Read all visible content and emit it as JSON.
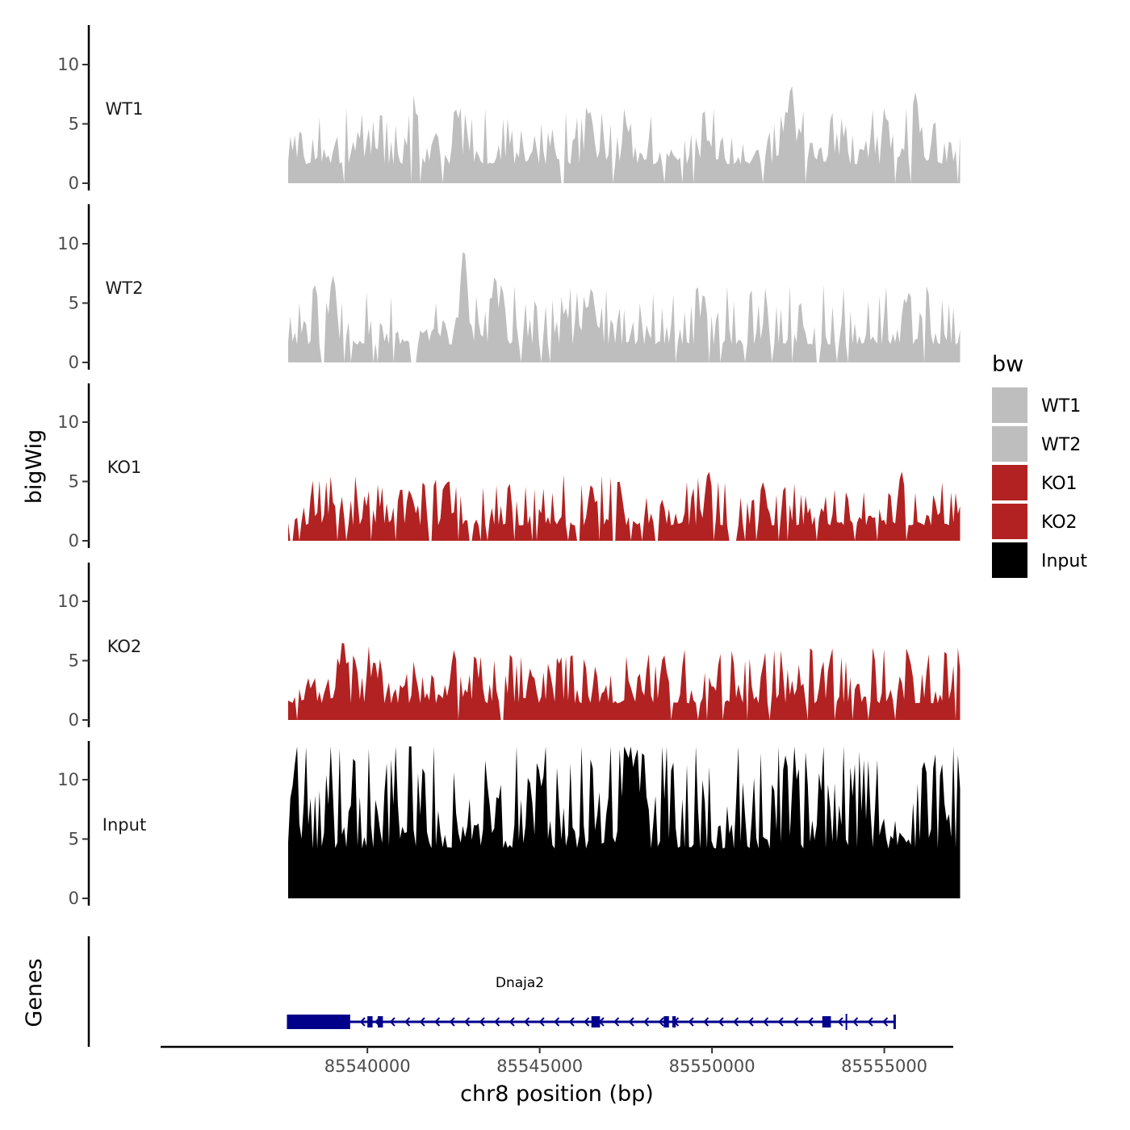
{
  "chart_data": {
    "type": "area",
    "title": "",
    "xlabel": "chr8 position (bp)",
    "ylabel": "bigWig",
    "genes_label": "Genes",
    "xlim": [
      85534000,
      85557000
    ],
    "ylim": [
      0,
      13
    ],
    "xticks": [
      85540000,
      85545000,
      85550000,
      85555000
    ],
    "xtick_labels": [
      "85540000",
      "85545000",
      "85550000",
      "85555000"
    ],
    "yticks": [
      0,
      5,
      10
    ],
    "ytick_labels": [
      "0",
      "5",
      "10"
    ],
    "region": [
      85537700,
      85557200
    ],
    "legend": {
      "title": "bw",
      "position": "right",
      "entries": [
        {
          "label": "WT1",
          "color": "#bebebe"
        },
        {
          "label": "WT2",
          "color": "#bebebe"
        },
        {
          "label": "KO1",
          "color": "#b22222"
        },
        {
          "label": "KO2",
          "color": "#b22222"
        },
        {
          "label": "Input",
          "color": "#000000"
        }
      ]
    },
    "series": [
      {
        "name": "WT1",
        "color": "#bebebe",
        "seed": 11,
        "baseline": 1.6,
        "noise": 2.2,
        "gap_prob": 0.05,
        "peaks": [
          [
            85541300,
            7.6
          ],
          [
            85552300,
            8.0
          ],
          [
            85555900,
            7.5
          ],
          [
            85546500,
            5.0
          ],
          [
            85547500,
            5.0
          ]
        ]
      },
      {
        "name": "WT2",
        "color": "#bebebe",
        "seed": 23,
        "baseline": 1.5,
        "noise": 2.3,
        "gap_prob": 0.07,
        "peaks": [
          [
            85542800,
            9.5
          ],
          [
            85539000,
            7.3
          ],
          [
            85543700,
            7.2
          ],
          [
            85546500,
            6.2
          ],
          [
            85556200,
            5.5
          ]
        ]
      },
      {
        "name": "KO1",
        "color": "#b22222",
        "seed": 37,
        "baseline": 1.3,
        "noise": 2.0,
        "gap_prob": 0.12,
        "peaks": [
          [
            85549900,
            5.7
          ],
          [
            85555500,
            5.5
          ],
          [
            85547300,
            5.0
          ],
          [
            85542300,
            4.8
          ],
          [
            85546500,
            4.5
          ]
        ]
      },
      {
        "name": "KO2",
        "color": "#b22222",
        "seed": 53,
        "baseline": 1.4,
        "noise": 2.2,
        "gap_prob": 0.07,
        "peaks": [
          [
            85539300,
            6.5
          ],
          [
            85557100,
            6.3
          ],
          [
            85542600,
            5.2
          ],
          [
            85548600,
            5.2
          ],
          [
            85540200,
            5.0
          ]
        ]
      },
      {
        "name": "Input",
        "color": "#000000",
        "seed": 71,
        "baseline": 4.2,
        "noise": 4.4,
        "gap_prob": 0.0,
        "peaks": [
          [
            85548000,
            12.5
          ],
          [
            85537900,
            11.2
          ],
          [
            85552400,
            11.0
          ],
          [
            85545100,
            10.3
          ],
          [
            85544700,
            9.5
          ]
        ]
      }
    ],
    "gene": {
      "name": "Dnaja2",
      "color": "#00008b",
      "strand": "-",
      "start": 85537700,
      "end": 85555300,
      "exons": [
        [
          85537700,
          85539500
        ],
        [
          85540000,
          85540150
        ],
        [
          85540300,
          85540450
        ],
        [
          85546500,
          85546750
        ],
        [
          85548600,
          85548750
        ],
        [
          85548850,
          85548950
        ],
        [
          85553200,
          85553450
        ]
      ],
      "marker": 85553900
    }
  }
}
